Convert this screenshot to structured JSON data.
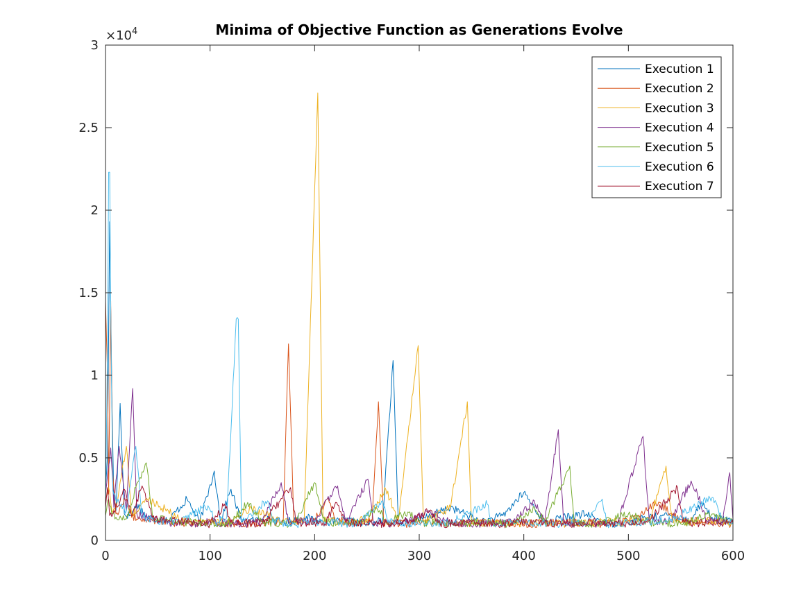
{
  "chart_data": {
    "type": "line",
    "title": "Minima of Objective Function as Generations Evolve",
    "xlabel": "",
    "ylabel": "",
    "xlim": [
      0,
      600
    ],
    "ylim": [
      0,
      30000
    ],
    "y_exponent_label": "×10",
    "y_exponent_power": "4",
    "x_ticks": [
      0,
      100,
      200,
      300,
      400,
      500,
      600
    ],
    "x_tick_labels": [
      "0",
      "100",
      "200",
      "300",
      "400",
      "500",
      "600"
    ],
    "y_ticks": [
      0,
      5000,
      10000,
      15000,
      20000,
      25000,
      30000
    ],
    "y_tick_labels": [
      "0",
      "0.5",
      "1",
      "1.5",
      "2",
      "2.5",
      "3"
    ],
    "grid": false,
    "legend_position": "top-right",
    "baseline": 1000,
    "series": [
      {
        "name": "Execution 1",
        "color": "#0072BD",
        "points": [
          [
            0,
            3200
          ],
          [
            2,
            5200
          ],
          [
            4,
            19300
          ],
          [
            6,
            9000
          ],
          [
            8,
            2400
          ],
          [
            10,
            1800
          ],
          [
            14,
            8300
          ],
          [
            18,
            1600
          ],
          [
            24,
            1500
          ],
          [
            30,
            2200
          ],
          [
            40,
            1400
          ],
          [
            50,
            1300
          ],
          [
            60,
            1200
          ],
          [
            78,
            2500
          ],
          [
            90,
            1100
          ],
          [
            104,
            4200
          ],
          [
            110,
            1200
          ],
          [
            120,
            3100
          ],
          [
            130,
            1100
          ],
          [
            150,
            1300
          ],
          [
            170,
            1100
          ],
          [
            190,
            1400
          ],
          [
            210,
            1100
          ],
          [
            230,
            1200
          ],
          [
            250,
            1000
          ],
          [
            265,
            1200
          ],
          [
            275,
            10900
          ],
          [
            280,
            1100
          ],
          [
            300,
            1200
          ],
          [
            330,
            2000
          ],
          [
            360,
            1100
          ],
          [
            380,
            1500
          ],
          [
            400,
            2900
          ],
          [
            420,
            1100
          ],
          [
            440,
            1400
          ],
          [
            460,
            1600
          ],
          [
            480,
            1000
          ],
          [
            500,
            1100
          ],
          [
            520,
            1400
          ],
          [
            540,
            1500
          ],
          [
            560,
            1200
          ],
          [
            570,
            2300
          ],
          [
            580,
            1400
          ],
          [
            600,
            1100
          ]
        ]
      },
      {
        "name": "Execution 2",
        "color": "#D95319",
        "points": [
          [
            0,
            14500
          ],
          [
            2,
            10000
          ],
          [
            3,
            2800
          ],
          [
            5,
            14500
          ],
          [
            7,
            4000
          ],
          [
            10,
            1600
          ],
          [
            20,
            2500
          ],
          [
            25,
            1400
          ],
          [
            40,
            1300
          ],
          [
            60,
            1100
          ],
          [
            80,
            1000
          ],
          [
            100,
            1100
          ],
          [
            130,
            1000
          ],
          [
            150,
            1100
          ],
          [
            170,
            1200
          ],
          [
            175,
            11900
          ],
          [
            180,
            1100
          ],
          [
            200,
            1300
          ],
          [
            212,
            2500
          ],
          [
            220,
            1200
          ],
          [
            240,
            1100
          ],
          [
            255,
            1200
          ],
          [
            261,
            8400
          ],
          [
            266,
            1100
          ],
          [
            290,
            1000
          ],
          [
            320,
            1100
          ],
          [
            350,
            1000
          ],
          [
            380,
            1100
          ],
          [
            410,
            1000
          ],
          [
            440,
            1100
          ],
          [
            470,
            1000
          ],
          [
            500,
            1200
          ],
          [
            530,
            2300
          ],
          [
            550,
            1100
          ],
          [
            570,
            1200
          ],
          [
            600,
            1000
          ]
        ]
      },
      {
        "name": "Execution 3",
        "color": "#EDB120",
        "points": [
          [
            0,
            2500
          ],
          [
            3,
            3200
          ],
          [
            6,
            1800
          ],
          [
            10,
            2000
          ],
          [
            20,
            5700
          ],
          [
            25,
            1500
          ],
          [
            40,
            2500
          ],
          [
            50,
            2200
          ],
          [
            70,
            1300
          ],
          [
            90,
            1100
          ],
          [
            120,
            1200
          ],
          [
            140,
            1900
          ],
          [
            170,
            1100
          ],
          [
            190,
            1200
          ],
          [
            203,
            27100
          ],
          [
            208,
            1200
          ],
          [
            230,
            1100
          ],
          [
            250,
            1300
          ],
          [
            268,
            3100
          ],
          [
            280,
            1200
          ],
          [
            299,
            11800
          ],
          [
            304,
            1100
          ],
          [
            330,
            2000
          ],
          [
            346,
            8400
          ],
          [
            350,
            1100
          ],
          [
            380,
            1000
          ],
          [
            410,
            1100
          ],
          [
            440,
            1000
          ],
          [
            470,
            1100
          ],
          [
            500,
            1100
          ],
          [
            520,
            1200
          ],
          [
            536,
            4500
          ],
          [
            542,
            1200
          ],
          [
            570,
            1100
          ],
          [
            600,
            1100
          ]
        ]
      },
      {
        "name": "Execution 4",
        "color": "#7E2F8E",
        "points": [
          [
            0,
            2800
          ],
          [
            3,
            4500
          ],
          [
            5,
            5600
          ],
          [
            8,
            2000
          ],
          [
            13,
            5700
          ],
          [
            20,
            1800
          ],
          [
            26,
            9200
          ],
          [
            30,
            1600
          ],
          [
            45,
            1300
          ],
          [
            60,
            1100
          ],
          [
            80,
            1000
          ],
          [
            100,
            1100
          ],
          [
            130,
            1000
          ],
          [
            150,
            1100
          ],
          [
            168,
            3500
          ],
          [
            175,
            1100
          ],
          [
            200,
            1200
          ],
          [
            222,
            3300
          ],
          [
            230,
            1100
          ],
          [
            251,
            3700
          ],
          [
            256,
            1100
          ],
          [
            280,
            1000
          ],
          [
            310,
            1800
          ],
          [
            330,
            1100
          ],
          [
            360,
            1000
          ],
          [
            390,
            1100
          ],
          [
            410,
            2400
          ],
          [
            420,
            1100
          ],
          [
            433,
            6700
          ],
          [
            438,
            1100
          ],
          [
            460,
            1000
          ],
          [
            490,
            1100
          ],
          [
            514,
            6300
          ],
          [
            520,
            1100
          ],
          [
            540,
            1200
          ],
          [
            560,
            3600
          ],
          [
            566,
            2800
          ],
          [
            575,
            1200
          ],
          [
            590,
            1100
          ],
          [
            597,
            4100
          ],
          [
            600,
            1300
          ]
        ]
      },
      {
        "name": "Execution 5",
        "color": "#77AC30",
        "points": [
          [
            0,
            1500
          ],
          [
            3,
            2500
          ],
          [
            6,
            1600
          ],
          [
            10,
            1400
          ],
          [
            20,
            1300
          ],
          [
            29,
            3200
          ],
          [
            39,
            4700
          ],
          [
            45,
            1400
          ],
          [
            60,
            1200
          ],
          [
            80,
            1100
          ],
          [
            100,
            1000
          ],
          [
            120,
            1100
          ],
          [
            136,
            2300
          ],
          [
            150,
            1100
          ],
          [
            180,
            1000
          ],
          [
            200,
            3500
          ],
          [
            210,
            1100
          ],
          [
            240,
            1100
          ],
          [
            260,
            1900
          ],
          [
            270,
            1100
          ],
          [
            290,
            1700
          ],
          [
            300,
            1100
          ],
          [
            330,
            1000
          ],
          [
            360,
            1100
          ],
          [
            390,
            1000
          ],
          [
            410,
            2000
          ],
          [
            420,
            1100
          ],
          [
            444,
            4500
          ],
          [
            448,
            1100
          ],
          [
            470,
            1000
          ],
          [
            500,
            1600
          ],
          [
            520,
            1100
          ],
          [
            550,
            1000
          ],
          [
            580,
            1600
          ],
          [
            600,
            1100
          ]
        ]
      },
      {
        "name": "Execution 6",
        "color": "#4DBEEE",
        "points": [
          [
            0,
            1800
          ],
          [
            2,
            12000
          ],
          [
            3,
            22300
          ],
          [
            4,
            22300
          ],
          [
            5,
            14000
          ],
          [
            7,
            3000
          ],
          [
            10,
            2400
          ],
          [
            20,
            1800
          ],
          [
            29,
            5700
          ],
          [
            35,
            1400
          ],
          [
            50,
            1200
          ],
          [
            70,
            1100
          ],
          [
            98,
            2100
          ],
          [
            105,
            1100
          ],
          [
            116,
            1400
          ],
          [
            125,
            13400
          ],
          [
            127,
            13400
          ],
          [
            130,
            1200
          ],
          [
            155,
            2400
          ],
          [
            160,
            1100
          ],
          [
            180,
            1000
          ],
          [
            210,
            1100
          ],
          [
            240,
            1000
          ],
          [
            265,
            2400
          ],
          [
            270,
            1100
          ],
          [
            300,
            1000
          ],
          [
            330,
            1100
          ],
          [
            365,
            2200
          ],
          [
            370,
            1000
          ],
          [
            400,
            1100
          ],
          [
            430,
            1000
          ],
          [
            460,
            1100
          ],
          [
            475,
            2500
          ],
          [
            480,
            1000
          ],
          [
            510,
            1100
          ],
          [
            540,
            1200
          ],
          [
            580,
            2600
          ],
          [
            590,
            1300
          ],
          [
            600,
            1100
          ]
        ]
      },
      {
        "name": "Execution 7",
        "color": "#A2142F",
        "points": [
          [
            0,
            2000
          ],
          [
            2,
            3200
          ],
          [
            4,
            1500
          ],
          [
            8,
            1800
          ],
          [
            14,
            2400
          ],
          [
            18,
            3100
          ],
          [
            25,
            1500
          ],
          [
            35,
            3300
          ],
          [
            45,
            1400
          ],
          [
            60,
            1200
          ],
          [
            80,
            1100
          ],
          [
            100,
            1000
          ],
          [
            114,
            2200
          ],
          [
            120,
            1100
          ],
          [
            150,
            1000
          ],
          [
            177,
            3200
          ],
          [
            182,
            1100
          ],
          [
            210,
            1000
          ],
          [
            220,
            2300
          ],
          [
            230,
            1100
          ],
          [
            260,
            1000
          ],
          [
            290,
            1100
          ],
          [
            310,
            1800
          ],
          [
            320,
            1000
          ],
          [
            350,
            1100
          ],
          [
            380,
            1000
          ],
          [
            410,
            1100
          ],
          [
            440,
            1000
          ],
          [
            470,
            1100
          ],
          [
            500,
            1000
          ],
          [
            520,
            1200
          ],
          [
            547,
            3200
          ],
          [
            552,
            1100
          ],
          [
            580,
            1000
          ],
          [
            600,
            1100
          ]
        ]
      }
    ]
  }
}
